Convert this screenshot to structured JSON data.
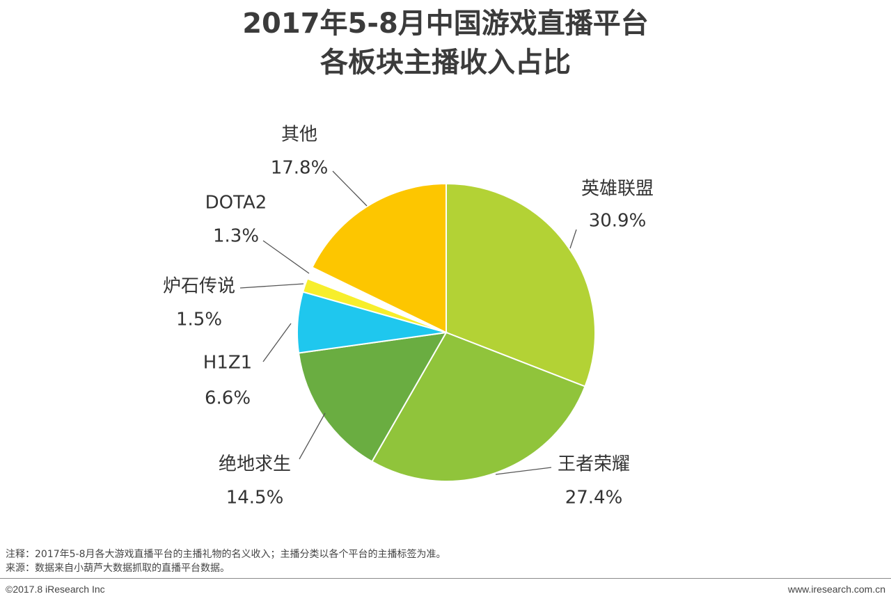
{
  "chart_data": {
    "type": "pie",
    "title_lines": [
      "2017年5-8月中国游戏直播平台",
      "各板块主播收入占比"
    ],
    "slices": [
      {
        "label": "英雄联盟",
        "value": 30.9,
        "value_label": "30.9%",
        "color": "#b3d235"
      },
      {
        "label": "王者荣耀",
        "value": 27.4,
        "value_label": "27.4%",
        "color": "#90c43b"
      },
      {
        "label": "绝地求生",
        "value": 14.5,
        "value_label": "14.5%",
        "color": "#6aad41"
      },
      {
        "label": "H1Z1",
        "value": 6.6,
        "value_label": "6.6%",
        "color": "#1fc7ee"
      },
      {
        "label": "炉石传说",
        "value": 1.5,
        "value_label": "1.5%",
        "color": "#f7ee2c"
      },
      {
        "label": "DOTA2",
        "value": 1.3,
        "value_label": "1.3%",
        "color": "#ffffff"
      },
      {
        "label": "其他",
        "value": 17.8,
        "value_label": "17.8%",
        "color": "#fdc600"
      }
    ]
  },
  "notes": {
    "line1": "注释：2017年5-8月各大游戏直播平台的主播礼物的名义收入；主播分类以各个平台的主播标签为准。",
    "line2": "来源：数据来自小葫芦大数据抓取的直播平台数据。"
  },
  "footer": {
    "copyright": "©2017.8 iResearch Inc",
    "website": "www.iresearch.com.cn"
  }
}
